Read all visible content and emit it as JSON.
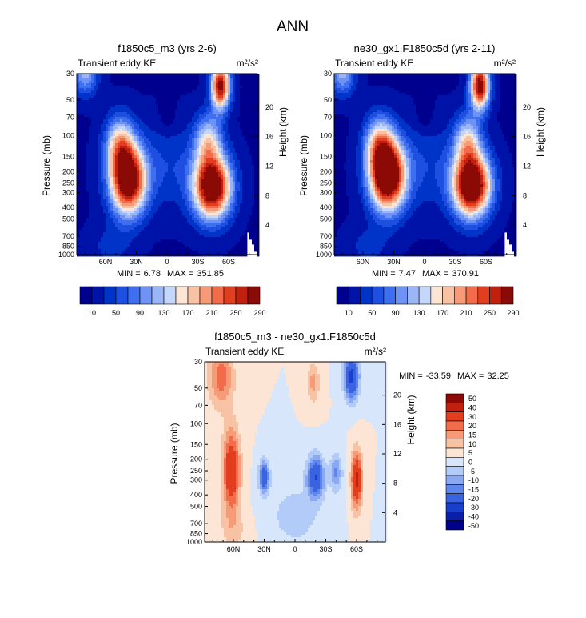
{
  "figure_title": "ANN",
  "chart_data": [
    {
      "type": "heatmap",
      "title": "f1850c5_m3 (yrs 2-6)",
      "subtitle_left": "Transient eddy KE",
      "units": "m²/s²",
      "ylabel": "Pressure (mb)",
      "ylabel_right": "Height (km)",
      "y_ticks": [
        "30",
        "50",
        "70",
        "100",
        "150",
        "200",
        "250",
        "300",
        "400",
        "500",
        "700",
        "850",
        "1000"
      ],
      "y_right_ticks": [
        "20",
        "16",
        "12",
        "8",
        "4"
      ],
      "x_ticks": [
        "60N",
        "30N",
        "0",
        "30S",
        "60S"
      ],
      "min_label": "MIN =",
      "min": "6.78",
      "max_label": "MAX =",
      "max": "351.85",
      "colorbar_labels": [
        "10",
        "50",
        "90",
        "130",
        "170",
        "210",
        "250",
        "290"
      ],
      "features": [
        {
          "lat": 38,
          "p": 240,
          "value": 340
        },
        {
          "lat": -44,
          "p": 270,
          "value": 352
        },
        {
          "lat": -52,
          "p": 38,
          "value": 300
        },
        {
          "lat": 0,
          "p": 60,
          "value": 7
        }
      ]
    },
    {
      "type": "heatmap",
      "title": "ne30_gx1.F1850c5d (yrs 2-11)",
      "subtitle_left": "Transient eddy KE",
      "units": "m²/s²",
      "ylabel": "Pressure (mb)",
      "ylabel_right": "Height (km)",
      "y_ticks": [
        "30",
        "50",
        "70",
        "100",
        "150",
        "200",
        "250",
        "300",
        "400",
        "500",
        "700",
        "850",
        "1000"
      ],
      "y_right_ticks": [
        "20",
        "16",
        "12",
        "8",
        "4"
      ],
      "x_ticks": [
        "60N",
        "30N",
        "0",
        "30S",
        "60S"
      ],
      "min_label": "MIN =",
      "min": "7.47",
      "max_label": "MAX =",
      "max": "370.91",
      "colorbar_labels": [
        "10",
        "50",
        "90",
        "130",
        "170",
        "210",
        "250",
        "290"
      ],
      "features": [
        {
          "lat": 36,
          "p": 220,
          "value": 365
        },
        {
          "lat": -46,
          "p": 260,
          "value": 371
        },
        {
          "lat": -54,
          "p": 38,
          "value": 310
        },
        {
          "lat": 0,
          "p": 60,
          "value": 7.5
        }
      ]
    },
    {
      "type": "heatmap",
      "title": "f1850c5_m3 - ne30_gx1.F1850c5d",
      "subtitle_left": "Transient eddy KE",
      "units": "m²/s²",
      "ylabel": "Pressure (mb)",
      "ylabel_right": "Height (km)",
      "y_ticks": [
        "30",
        "50",
        "70",
        "100",
        "150",
        "200",
        "250",
        "300",
        "400",
        "500",
        "700",
        "850",
        "1000"
      ],
      "y_right_ticks": [
        "20",
        "16",
        "12",
        "8",
        "4"
      ],
      "x_ticks": [
        "60N",
        "30N",
        "0",
        "30S",
        "60S"
      ],
      "min_label": "MIN =",
      "min": "-33.59",
      "max_label": "MAX =",
      "max": "32.25",
      "colorbar_labels": [
        "50",
        "40",
        "30",
        "20",
        "15",
        "10",
        "5",
        "0",
        "-5",
        "-10",
        "-15",
        "-20",
        "-30",
        "-40",
        "-50"
      ],
      "features": [
        {
          "lat": 62,
          "p": 250,
          "value": 30
        },
        {
          "lat": -60,
          "p": 300,
          "value": 32
        },
        {
          "lat": -55,
          "p": 40,
          "value": -30
        },
        {
          "lat": -15,
          "p": 280,
          "value": -34
        },
        {
          "lat": 28,
          "p": 280,
          "value": -30
        }
      ]
    }
  ],
  "colors": {
    "seq": [
      "#00008f",
      "#0013a8",
      "#0033c8",
      "#1e4fe0",
      "#3d6ff0",
      "#6f93f5",
      "#9bb6f7",
      "#c4d6f9",
      "#fce5d4",
      "#f8c2a4",
      "#f69a77",
      "#f26b4a",
      "#e23d1f",
      "#c0200d",
      "#8c0a05"
    ],
    "diff": [
      "#8c0a05",
      "#c0200d",
      "#e23d1f",
      "#f26b4a",
      "#f69a77",
      "#f8c2a4",
      "#fce5d4",
      "#d8e6fb",
      "#b3cbf8",
      "#8ba9f3",
      "#5f86ec",
      "#3a63e0",
      "#1a3fcc",
      "#0a1fa8",
      "#00008a"
    ]
  }
}
